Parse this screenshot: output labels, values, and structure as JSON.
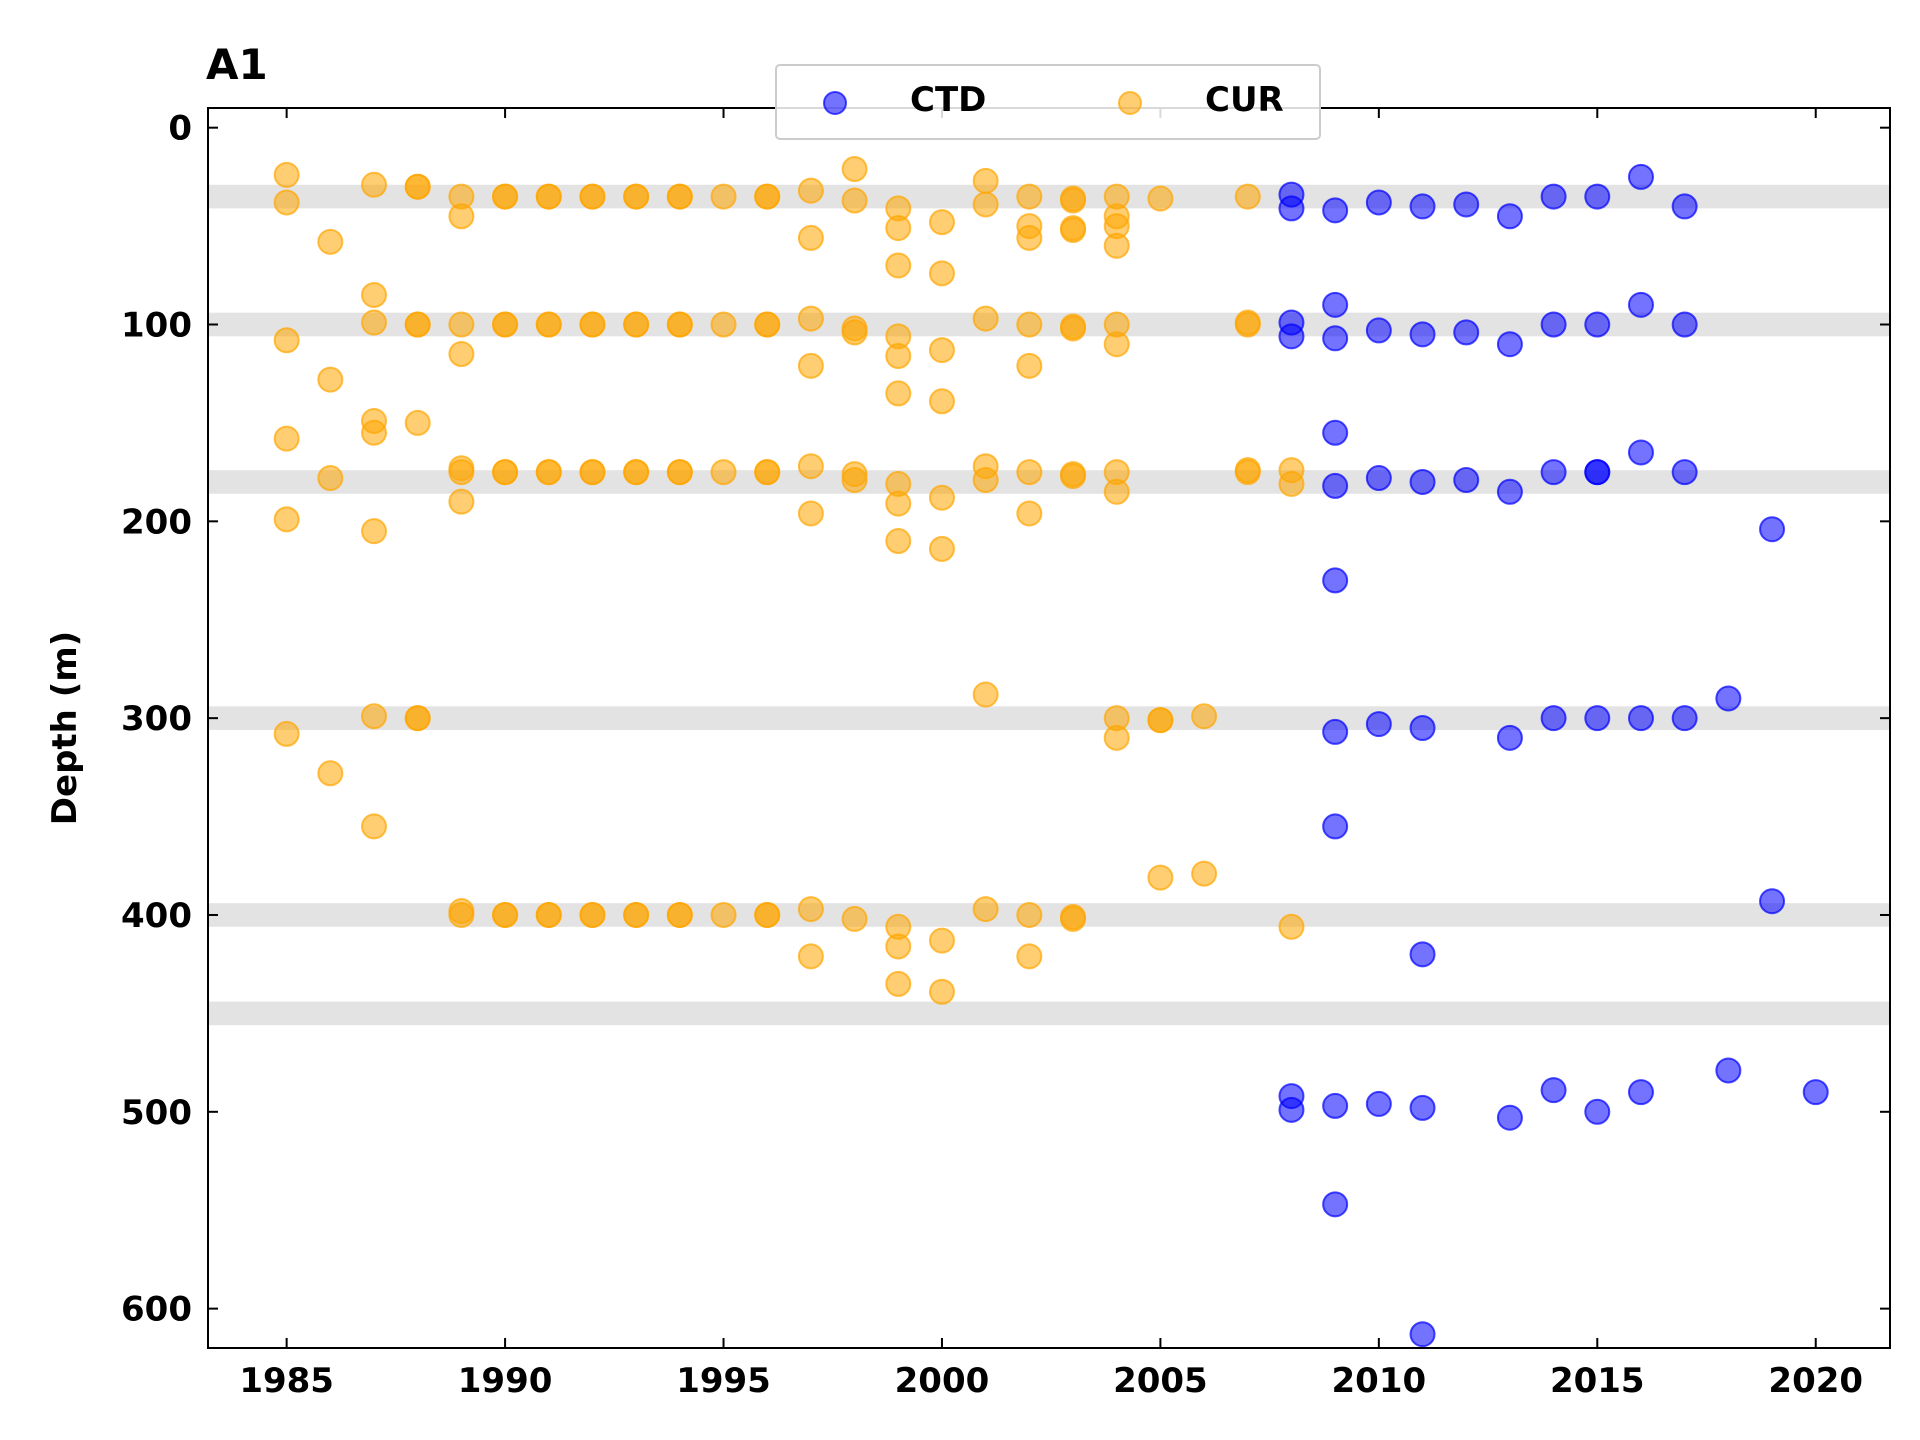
{
  "chart_data": {
    "type": "scatter",
    "title": "A1",
    "xlabel": "",
    "ylabel": "Depth (m)",
    "xlim": [
      1983.2,
      2021.7
    ],
    "ylim": [
      620,
      -10
    ],
    "y_inverted": true,
    "xticks": [
      1985,
      1990,
      1995,
      2000,
      2005,
      2010,
      2015,
      2020
    ],
    "yticks": [
      0,
      100,
      200,
      300,
      400,
      500,
      600
    ],
    "ticks_direction": "in",
    "ticks_mirrored": true,
    "grid": false,
    "legend": {
      "position": "top-center",
      "columns": 2
    },
    "bands": [
      {
        "center": 35,
        "halfwidth": 6
      },
      {
        "center": 100,
        "halfwidth": 6
      },
      {
        "center": 180,
        "halfwidth": 6
      },
      {
        "center": 300,
        "halfwidth": 6
      },
      {
        "center": 400,
        "halfwidth": 6
      },
      {
        "center": 450,
        "halfwidth": 6
      }
    ],
    "band_color": "#d9d9d9",
    "series": [
      {
        "name": "CUR",
        "color": "#ffa500",
        "alpha": 0.55,
        "points": [
          [
            1985,
            24
          ],
          [
            1985,
            38
          ],
          [
            1985,
            108
          ],
          [
            1985,
            158
          ],
          [
            1985,
            199
          ],
          [
            1985,
            308
          ],
          [
            1986,
            58
          ],
          [
            1986,
            128
          ],
          [
            1986,
            178
          ],
          [
            1986,
            328
          ],
          [
            1987,
            29
          ],
          [
            1987,
            85
          ],
          [
            1987,
            99
          ],
          [
            1987,
            149
          ],
          [
            1987,
            155
          ],
          [
            1987,
            205
          ],
          [
            1987,
            299
          ],
          [
            1987,
            355
          ],
          [
            1988,
            30
          ],
          [
            1988,
            30
          ],
          [
            1988,
            100
          ],
          [
            1988,
            100
          ],
          [
            1988,
            150
          ],
          [
            1988,
            300
          ],
          [
            1988,
            300
          ],
          [
            1989,
            35
          ],
          [
            1989,
            45
          ],
          [
            1989,
            100
          ],
          [
            1989,
            115
          ],
          [
            1989,
            173
          ],
          [
            1989,
            175
          ],
          [
            1989,
            190
          ],
          [
            1989,
            398
          ],
          [
            1989,
            400
          ],
          [
            1990,
            35
          ],
          [
            1990,
            35
          ],
          [
            1990,
            100
          ],
          [
            1990,
            100
          ],
          [
            1990,
            175
          ],
          [
            1990,
            175
          ],
          [
            1990,
            400
          ],
          [
            1990,
            400
          ],
          [
            1991,
            35
          ],
          [
            1991,
            35
          ],
          [
            1991,
            100
          ],
          [
            1991,
            100
          ],
          [
            1991,
            175
          ],
          [
            1991,
            175
          ],
          [
            1991,
            400
          ],
          [
            1991,
            400
          ],
          [
            1992,
            35
          ],
          [
            1992,
            35
          ],
          [
            1992,
            100
          ],
          [
            1992,
            100
          ],
          [
            1992,
            175
          ],
          [
            1992,
            175
          ],
          [
            1992,
            400
          ],
          [
            1992,
            400
          ],
          [
            1993,
            35
          ],
          [
            1993,
            35
          ],
          [
            1993,
            100
          ],
          [
            1993,
            100
          ],
          [
            1993,
            175
          ],
          [
            1993,
            175
          ],
          [
            1993,
            400
          ],
          [
            1993,
            400
          ],
          [
            1994,
            35
          ],
          [
            1994,
            35
          ],
          [
            1994,
            100
          ],
          [
            1994,
            100
          ],
          [
            1994,
            175
          ],
          [
            1994,
            175
          ],
          [
            1994,
            400
          ],
          [
            1994,
            400
          ],
          [
            1995,
            35
          ],
          [
            1995,
            100
          ],
          [
            1995,
            175
          ],
          [
            1995,
            400
          ],
          [
            1996,
            35
          ],
          [
            1996,
            35
          ],
          [
            1996,
            100
          ],
          [
            1996,
            100
          ],
          [
            1996,
            175
          ],
          [
            1996,
            175
          ],
          [
            1996,
            400
          ],
          [
            1996,
            400
          ],
          [
            1997,
            32
          ],
          [
            1997,
            56
          ],
          [
            1997,
            97
          ],
          [
            1997,
            121
          ],
          [
            1997,
            172
          ],
          [
            1997,
            196
          ],
          [
            1997,
            397
          ],
          [
            1997,
            421
          ],
          [
            1998,
            21
          ],
          [
            1998,
            37
          ],
          [
            1998,
            102
          ],
          [
            1998,
            104
          ],
          [
            1998,
            176
          ],
          [
            1998,
            179
          ],
          [
            1998,
            402
          ],
          [
            1999,
            41
          ],
          [
            1999,
            51
          ],
          [
            1999,
            70
          ],
          [
            1999,
            106
          ],
          [
            1999,
            116
          ],
          [
            1999,
            135
          ],
          [
            1999,
            181
          ],
          [
            1999,
            191
          ],
          [
            1999,
            210
          ],
          [
            1999,
            406
          ],
          [
            1999,
            416
          ],
          [
            1999,
            435
          ],
          [
            2000,
            48
          ],
          [
            2000,
            74
          ],
          [
            2000,
            113
          ],
          [
            2000,
            139
          ],
          [
            2000,
            188
          ],
          [
            2000,
            214
          ],
          [
            2000,
            413
          ],
          [
            2000,
            439
          ],
          [
            2001,
            27
          ],
          [
            2001,
            39
          ],
          [
            2001,
            97
          ],
          [
            2001,
            172
          ],
          [
            2001,
            179
          ],
          [
            2001,
            288
          ],
          [
            2001,
            397
          ],
          [
            2002,
            35
          ],
          [
            2002,
            50
          ],
          [
            2002,
            56
          ],
          [
            2002,
            100
          ],
          [
            2002,
            121
          ],
          [
            2002,
            175
          ],
          [
            2002,
            196
          ],
          [
            2002,
            400
          ],
          [
            2002,
            421
          ],
          [
            2003,
            36
          ],
          [
            2003,
            37
          ],
          [
            2003,
            51
          ],
          [
            2003,
            52
          ],
          [
            2003,
            101
          ],
          [
            2003,
            102
          ],
          [
            2003,
            176
          ],
          [
            2003,
            177
          ],
          [
            2003,
            401
          ],
          [
            2003,
            402
          ],
          [
            2004,
            35
          ],
          [
            2004,
            45
          ],
          [
            2004,
            50
          ],
          [
            2004,
            60
          ],
          [
            2004,
            100
          ],
          [
            2004,
            110
          ],
          [
            2004,
            175
          ],
          [
            2004,
            185
          ],
          [
            2004,
            300
          ],
          [
            2004,
            310
          ],
          [
            2005,
            36
          ],
          [
            2005,
            301
          ],
          [
            2005,
            301
          ],
          [
            2005,
            381
          ],
          [
            2006,
            299
          ],
          [
            2006,
            379
          ],
          [
            2007,
            35
          ],
          [
            2007,
            99
          ],
          [
            2007,
            100
          ],
          [
            2007,
            174
          ],
          [
            2007,
            175
          ],
          [
            2008,
            174
          ],
          [
            2008,
            181
          ],
          [
            2008,
            406
          ]
        ]
      },
      {
        "name": "CTD",
        "color": "#0000ff",
        "alpha": 0.55,
        "points": [
          [
            2008,
            34
          ],
          [
            2008,
            41
          ],
          [
            2008,
            99
          ],
          [
            2008,
            106
          ],
          [
            2008,
            492
          ],
          [
            2008,
            499
          ],
          [
            2009,
            42
          ],
          [
            2009,
            90
          ],
          [
            2009,
            107
          ],
          [
            2009,
            155
          ],
          [
            2009,
            182
          ],
          [
            2009,
            230
          ],
          [
            2009,
            307
          ],
          [
            2009,
            355
          ],
          [
            2009,
            497
          ],
          [
            2009,
            547
          ],
          [
            2010,
            38
          ],
          [
            2010,
            103
          ],
          [
            2010,
            178
          ],
          [
            2010,
            303
          ],
          [
            2010,
            496
          ],
          [
            2011,
            40
          ],
          [
            2011,
            105
          ],
          [
            2011,
            180
          ],
          [
            2011,
            305
          ],
          [
            2011,
            420
          ],
          [
            2011,
            498
          ],
          [
            2011,
            613
          ],
          [
            2012,
            39
          ],
          [
            2012,
            104
          ],
          [
            2012,
            179
          ],
          [
            2013,
            45
          ],
          [
            2013,
            110
          ],
          [
            2013,
            185
          ],
          [
            2013,
            310
          ],
          [
            2013,
            503
          ],
          [
            2014,
            35
          ],
          [
            2014,
            100
          ],
          [
            2014,
            175
          ],
          [
            2014,
            300
          ],
          [
            2014,
            489
          ],
          [
            2015,
            35
          ],
          [
            2015,
            100
          ],
          [
            2015,
            175
          ],
          [
            2015,
            175
          ],
          [
            2015,
            300
          ],
          [
            2015,
            500
          ],
          [
            2016,
            25
          ],
          [
            2016,
            90
          ],
          [
            2016,
            165
          ],
          [
            2016,
            300
          ],
          [
            2016,
            490
          ],
          [
            2017,
            40
          ],
          [
            2017,
            100
          ],
          [
            2017,
            175
          ],
          [
            2017,
            300
          ],
          [
            2018,
            290
          ],
          [
            2018,
            479
          ],
          [
            2019,
            204
          ],
          [
            2019,
            393
          ],
          [
            2020,
            490
          ]
        ]
      }
    ]
  }
}
